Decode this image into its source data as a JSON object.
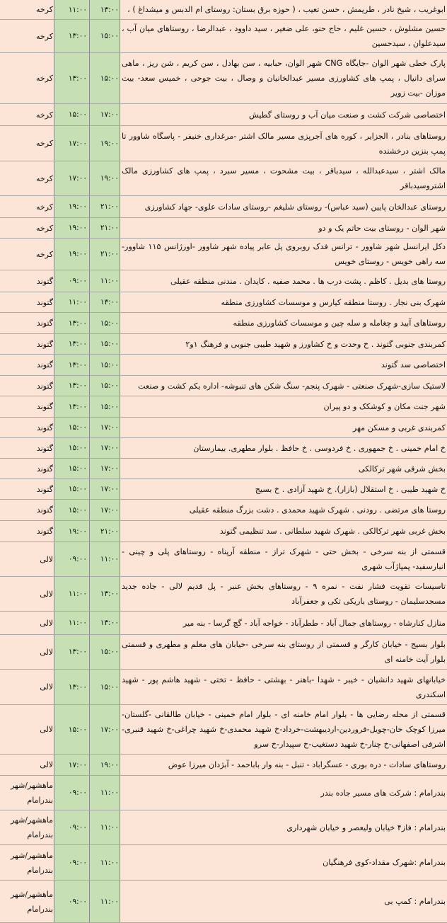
{
  "colors": {
    "row_background": "#fce4d6",
    "time_columns": "#c6e0b4",
    "grid": "#a8a8a8"
  },
  "rows": [
    {
      "city": "کرخه",
      "start": "۱۱:۰۰",
      "end": "۱۳:۰۰",
      "desc": "ابوغریب ، شیخ نادر ، طریمش ، حسن تعیب ، ( حوزه برق بستان: روستای ام الدبس و میشداغ ) ،"
    },
    {
      "city": "کرخه",
      "start": "۱۳:۰۰",
      "end": "۱۵:۰۰",
      "desc": "حسین مشلوش ، حسین غلیم ، حاج حنو، علی ضغیر ، سید داوود ، عبدالرضا ، روستاهای میان آب ، سیدعلوان ، سیدحسین"
    },
    {
      "city": "کرخه",
      "start": "۱۳:۰۰",
      "end": "۱۵:۰۰",
      "desc": "پارک خطی شهر الوان -جایگاه CNG شهر الوان، حبابیه ، سن بهادل ، سن کریم ، شن ریز ، ماهی سرای دانیال ، پمپ های کشاورزی مسیر عبدالخانیان و وصال ، بیت جوحی ، خمیس سعد- بیت موزان -بیت زویر"
    },
    {
      "city": "کرخه",
      "start": "۱۵:۰۰",
      "end": "۱۷:۰۰",
      "desc": "اختصاصی شرکت کشت و صنعت میان آب و روستای گطیش"
    },
    {
      "city": "کرخه",
      "start": "۱۷:۰۰",
      "end": "۱۹:۰۰",
      "desc": "روستاهای بنادر ، الجزایر ، کوره های آجرپزی مسیر مالک اشتر -مرغداری خنیفر - پاسگاه شاوور تا پمپ بنزین درخشنده"
    },
    {
      "city": "کرخه",
      "start": "۱۷:۰۰",
      "end": "۱۹:۰۰",
      "desc": "مالک اشتر ، سیدعبدالله ، سیدباقر ، بیت مشحوت ، مسیر سبرد ، پمپ های کشاورزی مالک اشتروسیدباقر"
    },
    {
      "city": "کرخه",
      "start": "۱۹:۰۰",
      "end": "۲۱:۰۰",
      "desc": "روستای عبدالخان پایین (سید عباس)- روستای شلیغم -روستای سادات علوی- جهاد کشاورزی"
    },
    {
      "city": "کرخه",
      "start": "۱۹:۰۰",
      "end": "۲۱:۰۰",
      "desc": "شهر الوان - روستای بیت حاتم یک و دو"
    },
    {
      "city": "کرخه",
      "start": "۱۹:۰۰",
      "end": "۲۱:۰۰",
      "desc": "دکل ایرانسل شهر شاوور - ترانس فدک روبروی پل عابر پیاده شهر شاوور -اورژانس ۱۱۵ شاوور- سه راهی خویس - روستای خویس"
    },
    {
      "city": "گتوند",
      "start": "۰۹:۰۰",
      "end": "۱۱:۰۰",
      "desc": "روستا های بدیل . کاظم . پشت درب ها . محمد صفیه . کایدان . مندنی منطقه عقیلی"
    },
    {
      "city": "گتوند",
      "start": "۱۱:۰۰",
      "end": "۱۳:۰۰",
      "desc": "شهرک بنی نجار . روستا منطقه کیارس و موسسات کشاورزی منطقه"
    },
    {
      "city": "گتوند",
      "start": "۱۳:۰۰",
      "end": "۱۵:۰۰",
      "desc": "روستاهای آبید و چغامله و سله چین و موسسات کشاورزی منطقه"
    },
    {
      "city": "گتوند",
      "start": "۱۳:۰۰",
      "end": "۱۵:۰۰",
      "desc": "کمربندی جنوبی گتوند . خ وحدت و خ کشاورز و شهید طیبی جنوبی و فرهنگ ۱و۲"
    },
    {
      "city": "گتوند",
      "start": "۱۳:۰۰",
      "end": "۱۵:۰۰",
      "desc": "اختصاصی سد گتوند"
    },
    {
      "city": "گتوند",
      "start": "۱۳:۰۰",
      "end": "۱۵:۰۰",
      "desc": "لاستیک سازی-شهرک صنعتی - شهرک پنجم- سنگ شکن های تنبوشه- اداره یکم کشت و صنعت"
    },
    {
      "city": "گتوند",
      "start": "۱۳:۰۰",
      "end": "۱۵:۰۰",
      "desc": "شهر جنت مکان و کوشکک و دو پیران"
    },
    {
      "city": "گتوند",
      "start": "۱۵:۰۰",
      "end": "۱۷:۰۰",
      "desc": "کمربندی غربی و مسکن مهر"
    },
    {
      "city": "گتوند",
      "start": "۱۵:۰۰",
      "end": "۱۷:۰۰",
      "desc": "خ امام خمینی . خ جمهوری . خ فردوسی . خ حافظ . بلوار مطهری. بیمارستان"
    },
    {
      "city": "گتوند",
      "start": "۱۵:۰۰",
      "end": "۱۷:۰۰",
      "desc": "بخش شرقی شهر ترکالکی"
    },
    {
      "city": "گتوند",
      "start": "۱۵:۰۰",
      "end": "۱۷:۰۰",
      "desc": "خ شهید طیبی . خ استقلال (بازار). خ شهید آزادی . خ بسیج"
    },
    {
      "city": "گتوند",
      "start": "۱۵:۰۰",
      "end": "۱۷:۰۰",
      "desc": "روستا های مرتضی . رودنی . شهرک شهید محمدی . دشت بزرگ منطقه عقیلی"
    },
    {
      "city": "گتوند",
      "start": "۱۹:۰۰",
      "end": "۲۱:۰۰",
      "desc": "بخش غربی شهر ترکالکی . شهرک شهید سلطانی . سد تنظیمی گتوند"
    },
    {
      "city": "لالی",
      "start": "۰۹:۰۰",
      "end": "۱۱:۰۰",
      "desc": "قسمتی از بنه سرخی - بخش حتی - شهرک تراز - منطقه آرپناه - روستاهای پلی و چینی - انبارسفید- پمپاژآب شهری"
    },
    {
      "city": "لالی",
      "start": "۱۱:۰۰",
      "end": "۱۳:۰۰",
      "desc": "تاسیسات تقویت فشار نفت - نمره ۹ - روستاهای بخش عنبر - پل قدیم لالی - جاده جدید مسجدسلیمان - روستای باریکی تکی و جعفرآباد"
    },
    {
      "city": "لالی",
      "start": "۱۱:۰۰",
      "end": "۱۳:۰۰",
      "desc": "منازل کنارشاه - روستاهای جمال آباد - ططرآباد - خواجه آباد - گچ گرسا - بنه میر"
    },
    {
      "city": "لالی",
      "start": "۱۳:۰۰",
      "end": "۱۵:۰۰",
      "desc": "بلوار بسیج - خیابان کارگر و قسمتی از روستای بنه سرخی -خیابان های معلم و مطهری و قسمتی بلوار آیت خامنه ای"
    },
    {
      "city": "لالی",
      "start": "۱۳:۰۰",
      "end": "۱۵:۰۰",
      "desc": "خیابانهای شهید دانشیان - خیبر - شهدا -باهنر - بهشتی - حافظ - تختی - شهید هاشم پور - شهید اسکندری"
    },
    {
      "city": "لالی",
      "start": "۱۵:۰۰",
      "end": "۱۷:۰۰",
      "desc": "قسمتی از محله رضایی ها - بلوار امام خامنه ای - بلوار امام خمینی - خیابان طالقانی -گلستان-میرزا کوچک خان-چویل-فروردین-اردیبهشت-خرداد-خ شهید محمدی-خ شهید چراغی-خ شهید قنبری-اشرفی اصفهانی-خ چنار-خ شهید دستغیب-خ سپیدار-خ سرو"
    },
    {
      "city": "لالی",
      "start": "۱۷:۰۰",
      "end": "۱۹:۰۰",
      "desc": "روستاهای سادات - دره بوری - عسگراباد - تنبل - بنه وار باباحمد - آبژدان میرزا عوض"
    },
    {
      "city": "ماهشهر/شهر بندرامام",
      "start": "۰۹:۰۰",
      "end": "۱۱:۰۰",
      "desc": "بندرامام : شرکت های مسیر جاده بندر"
    },
    {
      "city": "ماهشهر/شهر بندرامام",
      "start": "۰۹:۰۰",
      "end": "۱۱:۰۰",
      "desc": "بندرامام : فاز۴ خیابان ولیعصر و خیابان شهرداری"
    },
    {
      "city": "ماهشهر/شهر بندرامام",
      "start": "۰۹:۰۰",
      "end": "۱۱:۰۰",
      "desc": "بندرامام :شهرک مقداد-کوی فرهنگیان"
    },
    {
      "city": "ماهشهر/شهر بندرامام",
      "start": "۰۹:۰۰",
      "end": "۱۱:۰۰",
      "desc": "بندرامام : کمپ بی"
    }
  ]
}
